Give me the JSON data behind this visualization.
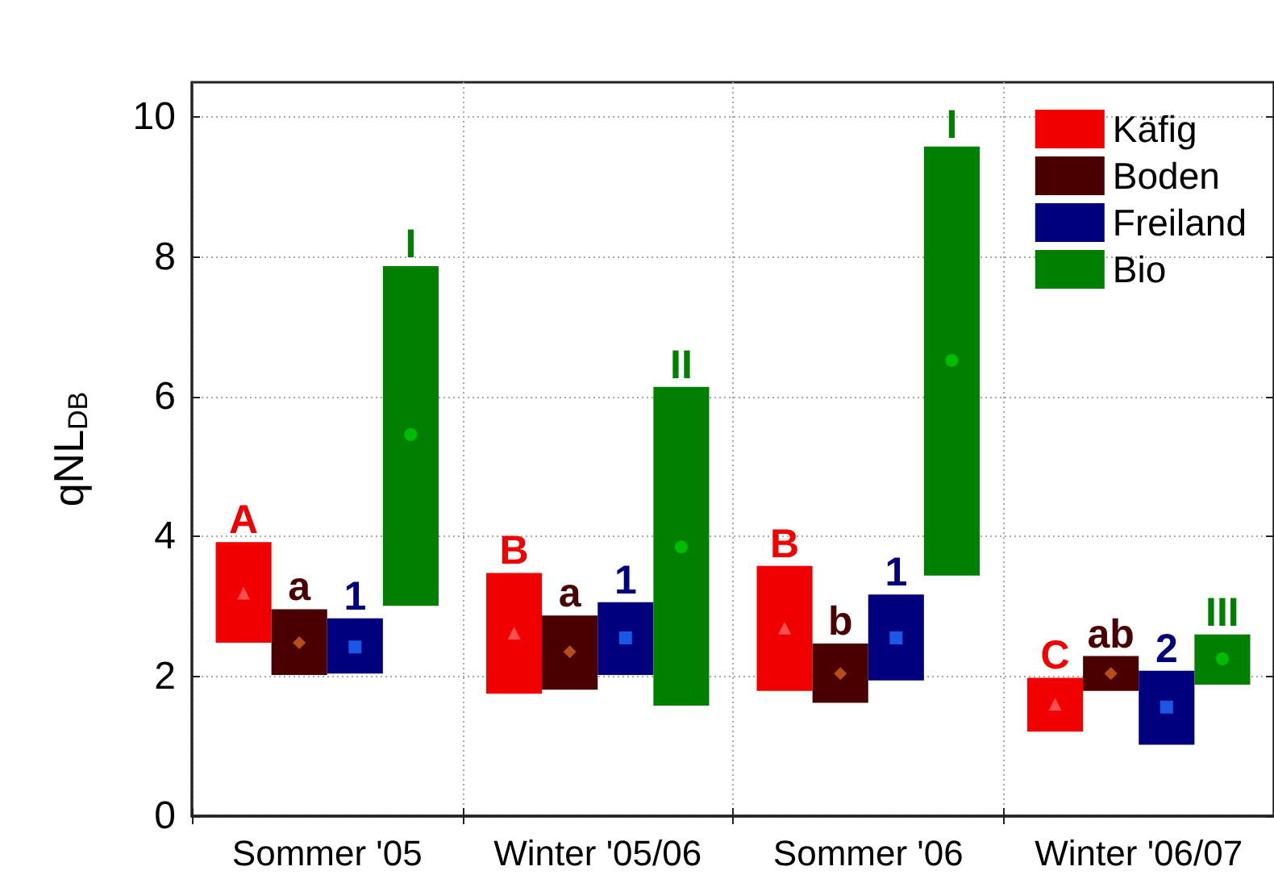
{
  "chart_data": {
    "type": "bar",
    "categories": [
      "Sommer '05",
      "Winter '05/06",
      "Sommer '06",
      "Winter '06/07"
    ],
    "ylabel": "qNL$_{DB}$",
    "ylim": [
      0,
      10.5
    ],
    "yticks": [
      0,
      2,
      4,
      6,
      8,
      10
    ],
    "grid": true,
    "legend": "top right",
    "series": [
      {
        "name": "Käfig",
        "color": "#f00000",
        "base": [
          2.48,
          1.75,
          1.79,
          1.21
        ],
        "values": [
          1.44,
          1.73,
          1.79,
          0.77
        ],
        "value_labels": [
          "A",
          "B",
          "B",
          "C"
        ]
      },
      {
        "name": "Boden",
        "color": "#4a0000",
        "base": [
          2.02,
          1.81,
          1.62,
          1.79
        ],
        "values": [
          0.94,
          1.06,
          0.85,
          0.5
        ],
        "value_labels": [
          "a",
          "a",
          "b",
          "ab"
        ]
      },
      {
        "name": "Freiland",
        "color": "#00007f",
        "base": [
          2.04,
          2.02,
          1.94,
          1.02
        ],
        "values": [
          0.79,
          1.04,
          1.23,
          1.06
        ],
        "value_labels": [
          "1",
          "1",
          "1",
          "2"
        ]
      },
      {
        "name": "Bio",
        "color": "#007f00",
        "base": [
          3.01,
          1.58,
          3.44,
          1.88
        ],
        "values": [
          4.86,
          4.56,
          6.14,
          0.72
        ],
        "value_labels": [
          "I",
          "II",
          "I",
          "III"
        ]
      },
      {
        "type": "scatter",
        "color": "#ff6464",
        "marker": "triangle",
        "values": [
          3.19,
          2.62,
          2.69,
          1.6
        ]
      },
      {
        "type": "scatter",
        "color": "#d2601e",
        "marker": "diamond",
        "values": [
          2.48,
          2.35,
          2.04,
          2.04
        ]
      },
      {
        "type": "scatter",
        "color": "#1e6eff",
        "marker": "square",
        "values": [
          2.42,
          2.55,
          2.55,
          1.56
        ]
      },
      {
        "type": "scatter",
        "color": "#00cc00",
        "marker": "circle",
        "values": [
          5.46,
          3.85,
          6.52,
          2.25
        ]
      }
    ]
  }
}
